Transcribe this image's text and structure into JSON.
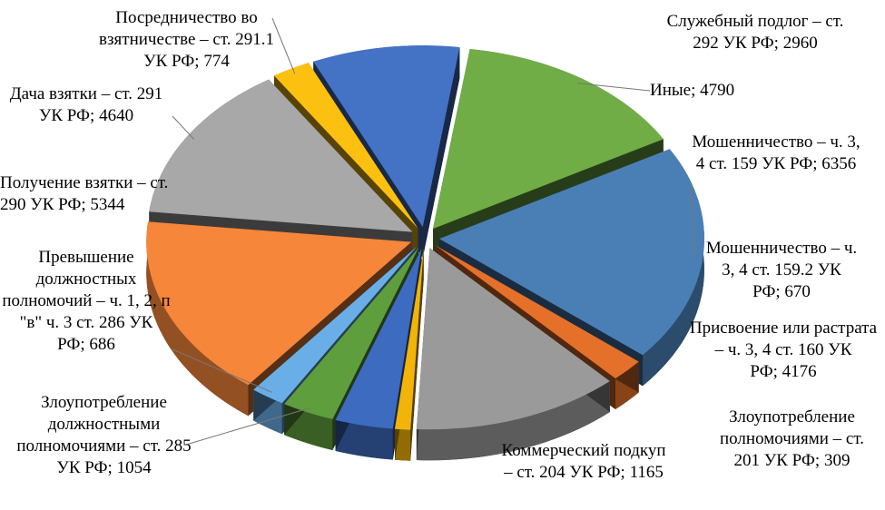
{
  "chart_data": {
    "type": "pie",
    "categories": [
      "Иные;",
      "Мошенничество – ч. 3, 4 ст. 159 УК РФ;",
      "Мошенничество – ч. 3, 4 ст. 159.2 УК РФ;",
      "Присвоение или растрата – ч. 3, 4 ст. 160 УК РФ;",
      "Злоупотребление полномочиями – ст. 201 УК РФ;",
      "Коммерческий подкуп – ст. 204 УК РФ;",
      "Злоупотребление должностными полномочиями – ст. 285 УК РФ;",
      "Превышение должностных полномочий – ч. 1, 2, п \"в\" ч. 3 ст. 286 УК РФ;",
      "Получение взятки – ст. 290 УК РФ;",
      "Дача взятки – ст. 291 УК РФ;",
      "Посредничество во взятничестве – ст. 291.1 УК РФ;",
      "Служебный подлог – ст. 292 УК РФ;"
    ],
    "values": [
      4790,
      6356,
      670,
      4176,
      309,
      1165,
      1054,
      686,
      5344,
      4640,
      774,
      2960
    ],
    "colors": [
      "#70ad47",
      "#4a7fb5",
      "#e5702a",
      "#9a9a9a",
      "#f2b409",
      "#3d6bbf",
      "#5f9e3c",
      "#6aaee8",
      "#f5863a",
      "#a8a8a8",
      "#fcc010",
      "#4472c4"
    ]
  }
}
